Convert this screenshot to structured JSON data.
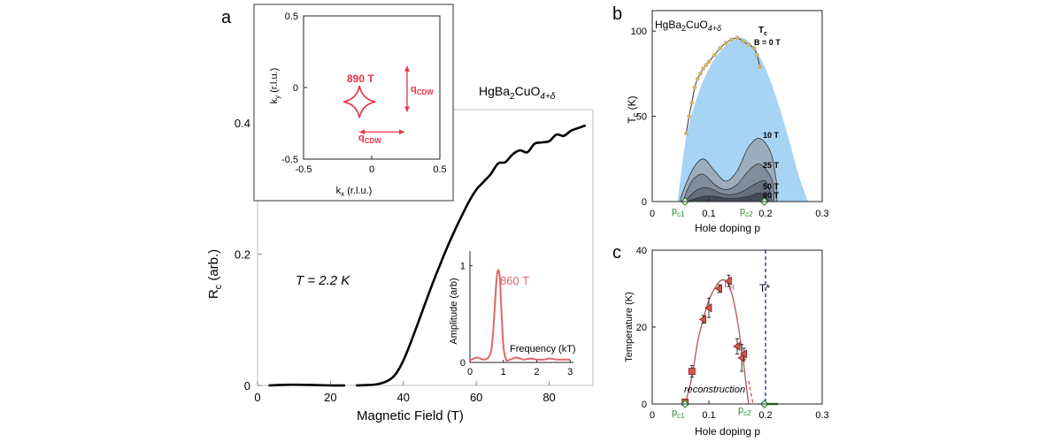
{
  "colors": {
    "curve": "#000000",
    "fs_red": "#e8324a",
    "fft": "#e06666",
    "dome": "#a7d3f4",
    "dots": "#cdb36e",
    "tc_line": "#333333",
    "th_marker": "#d9534f",
    "th_curve": "#b4545a",
    "tstar": "#1a237e",
    "pc_green": "#2e8b2e",
    "shade_10": "#9aa6b4",
    "shade_25": "#7b8797",
    "shade_50": "#5f6b7a",
    "shade_90": "#394350"
  },
  "panel_a": {
    "letter": "a",
    "compound": "HgBa",
    "compound_sub": "2",
    "compound_mid": "CuO",
    "compound_sub2": "4+δ",
    "temp_label": "T = 2.2 K",
    "inset_fs": {
      "freq_label": "890 T",
      "q_label": "q",
      "q_sub": "CDW"
    },
    "inset_fft": {
      "peak_label": "860 T"
    }
  },
  "panel_b": {
    "letter": "b",
    "compound": "HgBa",
    "compound_sub": "2",
    "compound_mid": "CuO",
    "compound_sub2": "4+δ",
    "tc_label": "T",
    "tc_sub": "c",
    "b0_label": "B = 0 T",
    "field_labels": [
      "10 T",
      "25 T",
      "50 T",
      "90 T"
    ],
    "pc1": "p",
    "pc1_sub": "c1",
    "pc2": "p",
    "pc2_sub": "c2"
  },
  "panel_c": {
    "letter": "c",
    "th_label": "T",
    "th_sub": "H",
    "tstar_label": "T*",
    "reconstruction_label": "reconstruction",
    "pc1": "p",
    "pc1_sub": "c1",
    "pc2": "p",
    "pc2_sub": "c2"
  },
  "chart_data": [
    {
      "id": "main_resistance",
      "type": "line",
      "xlabel": "Magnetic Field (T)",
      "ylabel": "R",
      "ylabel_sub": "c",
      "ylabel_tail": " (arb.)",
      "xlim": [
        0,
        92
      ],
      "ylim": [
        0,
        0.42
      ],
      "xticks": [
        0,
        20,
        40,
        60,
        80
      ],
      "yticks": [
        0,
        0.2,
        0.4
      ],
      "series": [
        {
          "x": [
            3,
            8,
            12,
            16,
            20,
            24
          ],
          "y": [
            0.0,
            0.001,
            0.001,
            0.0005,
            0.0,
            0.0
          ]
        },
        {
          "x": [
            27,
            30,
            33,
            36,
            38,
            40,
            42,
            44,
            46,
            48,
            50,
            52,
            54,
            56,
            58,
            60,
            62,
            64,
            66,
            68,
            70,
            72,
            74,
            76,
            78,
            80,
            82,
            84,
            86,
            88,
            90
          ],
          "y": [
            0.0,
            0.0005,
            0.002,
            0.008,
            0.018,
            0.038,
            0.065,
            0.095,
            0.125,
            0.155,
            0.183,
            0.21,
            0.235,
            0.258,
            0.28,
            0.298,
            0.31,
            0.322,
            0.338,
            0.34,
            0.352,
            0.358,
            0.355,
            0.368,
            0.37,
            0.372,
            0.382,
            0.38,
            0.388,
            0.392,
            0.396
          ]
        }
      ]
    },
    {
      "id": "inset_fermi_surface",
      "type": "line",
      "xlabel": "k",
      "xlabel_sub": "x",
      "xlabel_tail": " (r.l.u.)",
      "ylabel": "k",
      "ylabel_sub": "y",
      "ylabel_tail": " (r.l.u.)",
      "xlim": [
        -0.5,
        0.5
      ],
      "ylim": [
        -0.5,
        0.5
      ],
      "xticks": [
        -0.5,
        0,
        0.5
      ],
      "yticks": [
        -0.5,
        0,
        0.5
      ]
    },
    {
      "id": "inset_fft",
      "type": "line",
      "xlabel": "Frequency (kT)",
      "ylabel": "Amplitude (arb)",
      "xlim": [
        0,
        3.1
      ],
      "ylim": [
        0,
        1.15
      ],
      "xticks": [
        0,
        1,
        2,
        3
      ],
      "yticks": [
        0,
        1
      ],
      "series": [
        {
          "x": [
            0.0,
            0.2,
            0.4,
            0.55,
            0.65,
            0.72,
            0.78,
            0.82,
            0.86,
            0.9,
            0.94,
            1.0,
            1.08,
            1.2,
            1.4,
            1.6,
            1.8,
            2.0,
            2.2,
            2.4,
            2.6,
            2.8,
            3.0
          ],
          "y": [
            0.02,
            0.05,
            0.03,
            0.05,
            0.15,
            0.45,
            0.78,
            0.92,
            0.95,
            0.85,
            0.55,
            0.18,
            0.03,
            0.03,
            0.05,
            0.03,
            0.04,
            0.03,
            0.03,
            0.04,
            0.03,
            0.03,
            0.03
          ]
        }
      ]
    },
    {
      "id": "panel_b_tc",
      "type": "area",
      "xlabel": "Hole doping p",
      "ylabel": "T",
      "ylabel_sub": "c",
      "ylabel_tail": " (K)",
      "xlim": [
        0,
        0.3
      ],
      "ylim": [
        0,
        112
      ],
      "xticks": [
        0,
        0.1,
        0.2,
        0.3
      ],
      "yticks": [
        0,
        50,
        100
      ],
      "dome": {
        "x": [
          0.045,
          0.06,
          0.08,
          0.1,
          0.12,
          0.14,
          0.16,
          0.18,
          0.2,
          0.22,
          0.24,
          0.26,
          0.275
        ],
        "y": [
          0,
          38,
          62,
          78,
          88,
          94,
          96,
          90,
          78,
          60,
          38,
          14,
          0
        ]
      },
      "b0_points": {
        "x": [
          0.06,
          0.065,
          0.07,
          0.075,
          0.08,
          0.085,
          0.09,
          0.095,
          0.1,
          0.11,
          0.12,
          0.13,
          0.14,
          0.15,
          0.16,
          0.17,
          0.18,
          0.185,
          0.19
        ],
        "y": [
          40,
          50,
          58,
          67,
          72,
          75,
          78,
          80,
          82,
          86,
          90,
          93,
          95,
          96,
          94,
          92,
          90,
          86,
          79
        ]
      },
      "field_curves": [
        {
          "name": "10 T",
          "x": [
            0.05,
            0.07,
            0.09,
            0.11,
            0.13,
            0.15,
            0.17,
            0.19,
            0.21,
            0.22
          ],
          "y": [
            2,
            18,
            25,
            18,
            12,
            18,
            32,
            37,
            28,
            10
          ]
        },
        {
          "name": "25 T",
          "x": [
            0.055,
            0.07,
            0.09,
            0.11,
            0.13,
            0.15,
            0.17,
            0.19,
            0.21,
            0.215
          ],
          "y": [
            1,
            12,
            16,
            10,
            7,
            10,
            18,
            22,
            14,
            5
          ]
        },
        {
          "name": "50 T",
          "x": [
            0.06,
            0.08,
            0.1,
            0.12,
            0.14,
            0.16,
            0.18,
            0.2,
            0.21
          ],
          "y": [
            1,
            7,
            8,
            5,
            4,
            6,
            10,
            12,
            3
          ]
        },
        {
          "name": "90 T",
          "x": [
            0.065,
            0.09,
            0.11,
            0.13,
            0.15,
            0.17,
            0.19,
            0.205
          ],
          "y": [
            0.5,
            3,
            3,
            2,
            2,
            3,
            5,
            1
          ]
        }
      ],
      "pc_markers": [
        0.058,
        0.198
      ]
    },
    {
      "id": "panel_c_th",
      "type": "scatter",
      "xlabel": "Hole doping p",
      "ylabel": "Temperature (K)",
      "xlim": [
        0,
        0.3
      ],
      "ylim": [
        0,
        40
      ],
      "xticks": [
        0,
        0.1,
        0.2,
        0.3
      ],
      "yticks": [
        0,
        20,
        40
      ],
      "points": [
        {
          "x": 0.058,
          "y": 0.5,
          "err": 0.5
        },
        {
          "x": 0.07,
          "y": 8.5,
          "err": 1.5
        },
        {
          "x": 0.09,
          "y": 22,
          "err": 1
        },
        {
          "x": 0.1,
          "y": 25,
          "err": 2.5
        },
        {
          "x": 0.118,
          "y": 30,
          "err": 1
        },
        {
          "x": 0.135,
          "y": 32,
          "err": 1.5
        },
        {
          "x": 0.15,
          "y": 15,
          "err": 2
        },
        {
          "x": 0.158,
          "y": 12,
          "err": 3.5
        },
        {
          "x": 0.162,
          "y": 13,
          "err": 1.5
        }
      ],
      "th_curve": {
        "x": [
          0.058,
          0.07,
          0.08,
          0.09,
          0.1,
          0.11,
          0.12,
          0.13,
          0.14,
          0.15,
          0.16,
          0.165,
          0.17
        ],
        "y": [
          0,
          7,
          16,
          22,
          27,
          30,
          32,
          32,
          29,
          22,
          12,
          6,
          0
        ]
      },
      "tstar_x": 0.2,
      "pc_markers": [
        0.058,
        0.198
      ]
    }
  ]
}
